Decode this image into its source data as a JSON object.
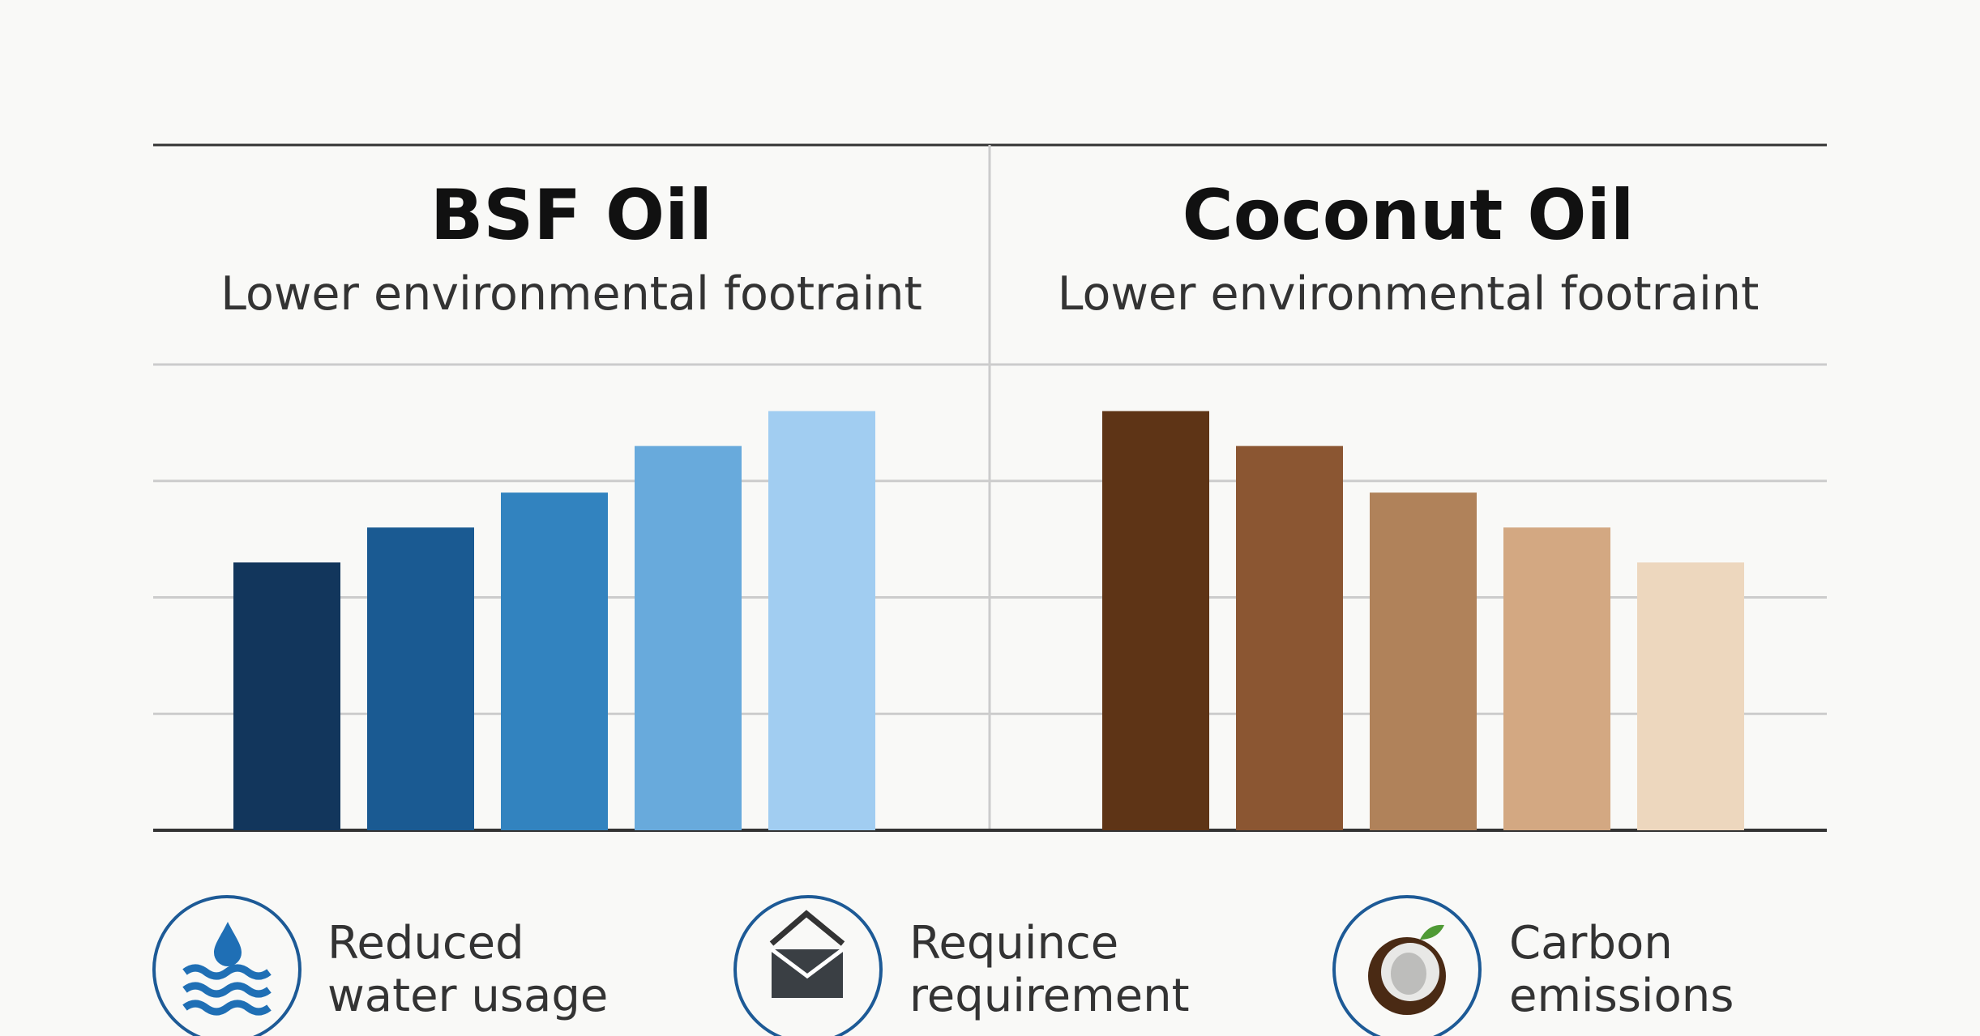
{
  "chart_data": [
    {
      "type": "bar",
      "title": "BSF Oil",
      "subtitle": "Lower environmental footraint",
      "categories": [
        null,
        null,
        null,
        null,
        null
      ],
      "values": [
        2.3,
        2.6,
        2.9,
        3.3,
        3.6
      ],
      "colors": [
        "#12365c",
        "#1a5a92",
        "#3283bf",
        "#68aadc",
        "#a1cdf1"
      ],
      "ylim": [
        0,
        4
      ],
      "yticks": [
        0,
        1,
        2,
        3,
        4
      ],
      "grid": true
    },
    {
      "type": "bar",
      "title": "Coconut Oil",
      "subtitle": "Lower environmental footraint",
      "categories": [
        null,
        null,
        null,
        null,
        null
      ],
      "values": [
        3.6,
        3.3,
        2.9,
        2.6,
        2.3
      ],
      "colors": [
        "#5e3416",
        "#8b5632",
        "#b0825a",
        "#d3a882",
        "#edd7be"
      ],
      "ylim": [
        0,
        4
      ],
      "yticks": [
        0,
        1,
        2,
        3,
        4
      ],
      "grid": true
    }
  ],
  "features": [
    {
      "lines": [
        "Reduced",
        "water usage"
      ]
    },
    {
      "lines": [
        "Requince",
        "requirement"
      ]
    },
    {
      "lines": [
        "Carbon",
        "emissions"
      ]
    }
  ]
}
